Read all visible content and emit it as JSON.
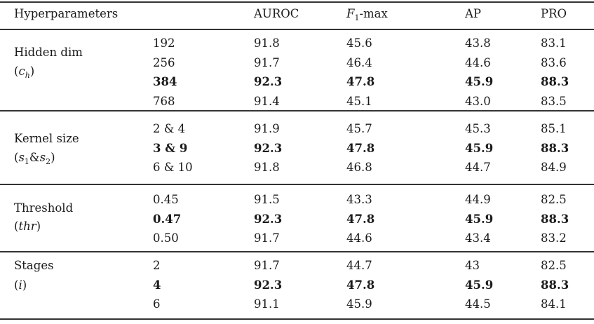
{
  "header": {
    "hyperparameters": "Hyperparameters",
    "auroc": "AUROC",
    "f1": [
      {
        "t": "F",
        "i": true
      },
      {
        "t": "1",
        "sub": true
      },
      {
        "t": "-max"
      }
    ],
    "ap": "AP",
    "pro": "PRO"
  },
  "groups": [
    {
      "label": "Hidden dim",
      "math": [
        {
          "t": "("
        },
        {
          "t": "c",
          "i": true
        },
        {
          "t": "h",
          "sub": true,
          "i": true
        },
        {
          "t": ")"
        }
      ],
      "rows": [
        {
          "param": "192",
          "auroc": "91.8",
          "f1": "45.6",
          "ap": "43.8",
          "pro": "83.1",
          "best": false
        },
        {
          "param": "256",
          "auroc": "91.7",
          "f1": "46.4",
          "ap": "44.6",
          "pro": "83.6",
          "best": false
        },
        {
          "param": "384",
          "auroc": "92.3",
          "f1": "47.8",
          "ap": "45.9",
          "pro": "88.3",
          "best": true
        },
        {
          "param": "768",
          "auroc": "91.4",
          "f1": "45.1",
          "ap": "43.0",
          "pro": "83.5",
          "best": false
        }
      ]
    },
    {
      "label": "Kernel size",
      "math": [
        {
          "t": "("
        },
        {
          "t": "s",
          "i": true
        },
        {
          "t": "1",
          "sub": true
        },
        {
          "t": "&"
        },
        {
          "t": "s",
          "i": true
        },
        {
          "t": "2",
          "sub": true
        },
        {
          "t": ")"
        }
      ],
      "rows": [
        {
          "param": "2 & 4",
          "auroc": "91.9",
          "f1": "45.7",
          "ap": "45.3",
          "pro": "85.1",
          "best": false
        },
        {
          "param": "3 & 9",
          "auroc": "92.3",
          "f1": "47.8",
          "ap": "45.9",
          "pro": "88.3",
          "best": true
        },
        {
          "param": "6 & 10",
          "auroc": "91.8",
          "f1": "46.8",
          "ap": "44.7",
          "pro": "84.9",
          "best": false
        }
      ]
    },
    {
      "label": "Threshold",
      "math": [
        {
          "t": "("
        },
        {
          "t": "thr",
          "i": true
        },
        {
          "t": ")"
        }
      ],
      "rows": [
        {
          "param": "0.45",
          "auroc": "91.5",
          "f1": "43.3",
          "ap": "44.9",
          "pro": "82.5",
          "best": false
        },
        {
          "param": "0.47",
          "auroc": "92.3",
          "f1": "47.8",
          "ap": "45.9",
          "pro": "88.3",
          "best": true
        },
        {
          "param": "0.50",
          "auroc": "91.7",
          "f1": "44.6",
          "ap": "43.4",
          "pro": "83.2",
          "best": false
        }
      ]
    },
    {
      "label": "Stages",
      "math": [
        {
          "t": "("
        },
        {
          "t": "i",
          "i": true
        },
        {
          "t": ")"
        }
      ],
      "rows": [
        {
          "param": "2",
          "auroc": "91.7",
          "f1": "44.7",
          "ap": "43",
          "pro": "82.5",
          "best": false
        },
        {
          "param": "4",
          "auroc": "92.3",
          "f1": "47.8",
          "ap": "45.9",
          "pro": "88.3",
          "best": true
        },
        {
          "param": "6",
          "auroc": "91.1",
          "f1": "45.9",
          "ap": "44.5",
          "pro": "84.1",
          "best": false
        }
      ]
    }
  ]
}
